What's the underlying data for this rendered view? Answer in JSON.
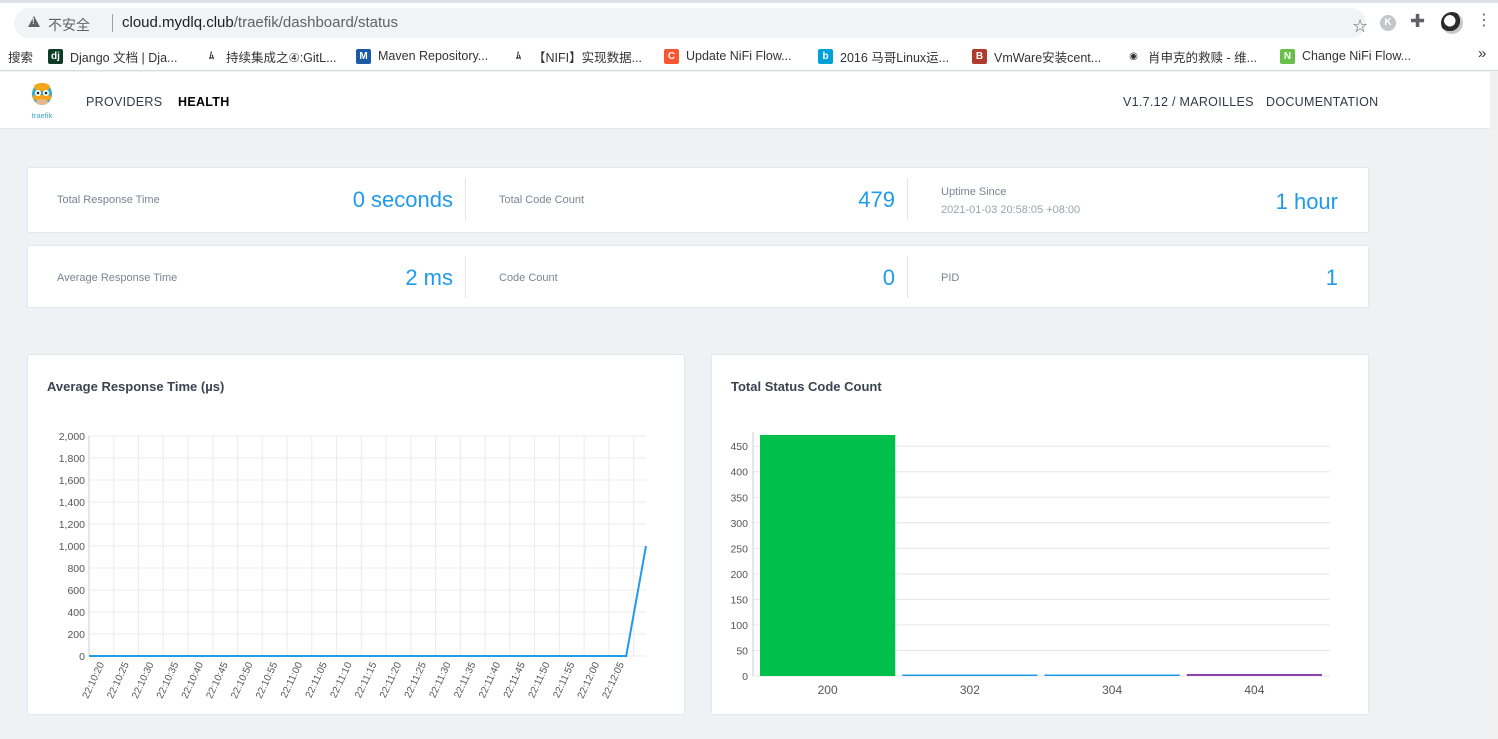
{
  "browser": {
    "insecure_label": "不安全",
    "url_host": "cloud.mydlq.club",
    "url_path": "/traefik/dashboard/status",
    "ext_letter": "K"
  },
  "bookmarks": {
    "search_label": "搜索",
    "items": [
      {
        "label": "Django 文档 | Dja...",
        "icon": "django-icon",
        "color": "#0c3c26",
        "glyph": "dj"
      },
      {
        "label": "持续集成之④:GitL...",
        "icon": "feather-icon",
        "color": "#ffffff",
        "glyph": "ﾑ"
      },
      {
        "label": "Maven Repository...",
        "icon": "mvn-icon",
        "color": "#1a5aa6",
        "glyph": "M"
      },
      {
        "label": "【NIFI】实现数据...",
        "icon": "feather-icon",
        "color": "#ffffff",
        "glyph": "ﾑ"
      },
      {
        "label": "Update NiFi Flow...",
        "icon": "csdn-icon",
        "color": "#fc5531",
        "glyph": "C"
      },
      {
        "label": "2016 马哥Linux运...",
        "icon": "bilibili-icon",
        "color": "#00a1d6",
        "glyph": "b"
      },
      {
        "label": "VmWare安装cent...",
        "icon": "b-logo-icon",
        "color": "#b03a2e",
        "glyph": "B"
      },
      {
        "label": "肖申克的救赎 - 维...",
        "icon": "wiki-audio-icon",
        "color": "#ffffff",
        "glyph": "◉"
      },
      {
        "label": "Change NiFi Flow...",
        "icon": "nifi-leaf-icon",
        "color": "#6abf4b",
        "glyph": "N"
      }
    ],
    "more": "»"
  },
  "header": {
    "logo_text": "traefik",
    "nav": {
      "providers": "PROVIDERS",
      "health": "HEALTH"
    },
    "version": "V1.7.12 / MAROILLES",
    "documentation": "DOCUMENTATION"
  },
  "stats": {
    "total_response_time": {
      "label": "Total Response Time",
      "value": "0 seconds"
    },
    "total_code_count": {
      "label": "Total Code Count",
      "value": "479"
    },
    "uptime": {
      "label": "Uptime Since",
      "since": "2021-01-03 20:58:05 +08:00",
      "value": "1 hour"
    },
    "average_response_time": {
      "label": "Average Response Time",
      "value": "2 ms"
    },
    "code_count": {
      "label": "Code Count",
      "value": "0"
    },
    "pid": {
      "label": "PID",
      "value": "1"
    }
  },
  "colors": {
    "accent": "#1e9be9",
    "code_200": "#00c04b",
    "code_302": "#1e9be9",
    "code_304": "#1e9be9",
    "code_404": "#8e44ad"
  },
  "chart_data": [
    {
      "type": "line",
      "title": "Average Response Time (µs)",
      "x": [
        "22:10:20",
        "22:10:25",
        "22:10:30",
        "22:10:35",
        "22:10:40",
        "22:10:45",
        "22:10:50",
        "22:10:55",
        "22:11:00",
        "22:11:05",
        "22:11:10",
        "22:11:15",
        "22:11:20",
        "22:11:25",
        "22:11:30",
        "22:11:35",
        "22:11:40",
        "22:11:45",
        "22:11:50",
        "22:11:55",
        "22:12:00",
        "22:12:05"
      ],
      "y": [
        0,
        0,
        0,
        0,
        0,
        0,
        0,
        0,
        0,
        0,
        0,
        0,
        0,
        0,
        0,
        0,
        0,
        0,
        0,
        0,
        0,
        0
      ],
      "last_point": 1000,
      "ylim": [
        0,
        2000
      ],
      "yticks": [
        0,
        200,
        400,
        600,
        800,
        1000,
        1200,
        1400,
        1600,
        1800,
        2000
      ],
      "grid": true
    },
    {
      "type": "bar",
      "title": "Total Status Code Count",
      "categories": [
        "200",
        "302",
        "304",
        "404"
      ],
      "values": [
        472,
        2,
        1,
        4
      ],
      "ylim": [
        0,
        470
      ],
      "yticks": [
        0,
        50,
        100,
        150,
        200,
        250,
        300,
        350,
        400,
        450
      ],
      "grid": true
    }
  ]
}
